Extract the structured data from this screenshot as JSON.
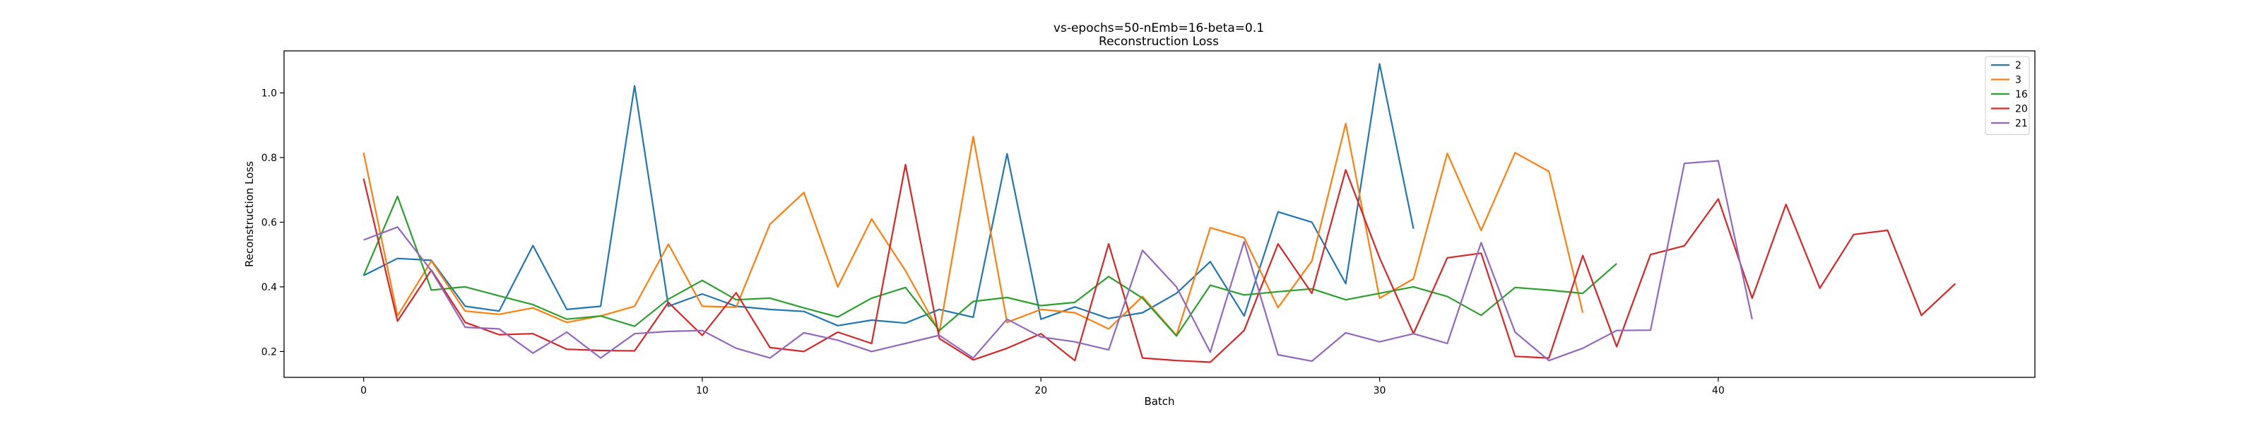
{
  "chart_data": {
    "type": "line",
    "title": "vs-epochs=50-nEmb=16-beta=0.1",
    "subtitle": "Reconstruction Loss",
    "xlabel": "Batch",
    "ylabel": "Reconstruction Loss",
    "xlim": [
      -2.35,
      49.35
    ],
    "ylim": [
      0.12,
      1.13
    ],
    "xticks": [
      0,
      10,
      20,
      30,
      40
    ],
    "yticks": [
      0.2,
      0.4,
      0.6,
      0.8,
      1.0
    ],
    "yticklabels": [
      "0.2",
      "0.4",
      "0.6",
      "0.8",
      "1.0"
    ],
    "grid": false,
    "legend_position": "top-right",
    "series": [
      {
        "name": "2",
        "color": "#1f77b4",
        "x": [
          0,
          1,
          2,
          3,
          4,
          5,
          6,
          7,
          8,
          9,
          10,
          11,
          12,
          13,
          14,
          15,
          16,
          17,
          18,
          19,
          20,
          21,
          22,
          23,
          24,
          25,
          26,
          27,
          28,
          29,
          30,
          31
        ],
        "y": [
          0.435,
          0.488,
          0.482,
          0.34,
          0.325,
          0.528,
          0.33,
          0.34,
          1.022,
          0.34,
          0.378,
          0.34,
          0.33,
          0.324,
          0.28,
          0.297,
          0.288,
          0.33,
          0.306,
          0.812,
          0.3,
          0.338,
          0.302,
          0.32,
          0.38,
          0.478,
          0.31,
          0.632,
          0.6,
          0.41,
          1.09,
          0.58
        ]
      },
      {
        "name": "3",
        "color": "#ff7f0e",
        "x": [
          0,
          1,
          2,
          3,
          4,
          5,
          6,
          7,
          8,
          9,
          10,
          11,
          12,
          13,
          14,
          15,
          16,
          17,
          18,
          19,
          20,
          21,
          22,
          23,
          24,
          25,
          26,
          27,
          28,
          29,
          30,
          31,
          32,
          33,
          34,
          35,
          36
        ],
        "y": [
          0.815,
          0.31,
          0.48,
          0.325,
          0.315,
          0.335,
          0.29,
          0.31,
          0.34,
          0.532,
          0.34,
          0.337,
          0.594,
          0.692,
          0.4,
          0.61,
          0.45,
          0.26,
          0.865,
          0.29,
          0.33,
          0.32,
          0.27,
          0.37,
          0.25,
          0.583,
          0.552,
          0.336,
          0.48,
          0.905,
          0.365,
          0.425,
          0.813,
          0.575,
          0.815,
          0.757,
          0.32
        ]
      },
      {
        "name": "16",
        "color": "#2ca02c",
        "x": [
          0,
          1,
          2,
          3,
          4,
          5,
          6,
          7,
          8,
          9,
          10,
          11,
          12,
          13,
          14,
          15,
          16,
          17,
          18,
          19,
          20,
          21,
          22,
          23,
          24,
          25,
          26,
          27,
          28,
          29,
          30,
          31,
          32,
          33,
          34,
          35,
          36,
          37
        ],
        "y": [
          0.435,
          0.68,
          0.39,
          0.4,
          0.372,
          0.345,
          0.3,
          0.31,
          0.278,
          0.362,
          0.42,
          0.36,
          0.365,
          0.335,
          0.307,
          0.365,
          0.398,
          0.265,
          0.355,
          0.367,
          0.342,
          0.352,
          0.432,
          0.365,
          0.248,
          0.405,
          0.375,
          0.385,
          0.394,
          0.36,
          0.38,
          0.4,
          0.37,
          0.312,
          0.398,
          0.39,
          0.38,
          0.472
        ]
      },
      {
        "name": "20",
        "color": "#d62728",
        "x": [
          0,
          1,
          2,
          3,
          4,
          5,
          6,
          7,
          8,
          9,
          10,
          11,
          12,
          13,
          14,
          15,
          16,
          17,
          18,
          19,
          20,
          21,
          22,
          23,
          24,
          25,
          26,
          27,
          28,
          29,
          30,
          31,
          32,
          33,
          34,
          35,
          36,
          37,
          38,
          39,
          40,
          41,
          42,
          43,
          44,
          45,
          46,
          47
        ],
        "y": [
          0.735,
          0.294,
          0.452,
          0.29,
          0.252,
          0.255,
          0.207,
          0.203,
          0.202,
          0.352,
          0.25,
          0.382,
          0.212,
          0.2,
          0.26,
          0.225,
          0.778,
          0.24,
          0.174,
          0.21,
          0.255,
          0.172,
          0.533,
          0.18,
          0.172,
          0.167,
          0.265,
          0.533,
          0.38,
          0.762,
          0.49,
          0.255,
          0.49,
          0.504,
          0.185,
          0.18,
          0.497,
          0.215,
          0.5,
          0.527,
          0.672,
          0.365,
          0.655,
          0.396,
          0.562,
          0.575,
          0.312,
          0.41
        ]
      },
      {
        "name": "21",
        "color": "#9467bd",
        "x": [
          0,
          1,
          2,
          3,
          4,
          5,
          6,
          7,
          8,
          9,
          10,
          11,
          12,
          13,
          14,
          15,
          16,
          17,
          18,
          19,
          20,
          21,
          22,
          23,
          24,
          25,
          26,
          27,
          28,
          29,
          30,
          31,
          32,
          33,
          34,
          35,
          36,
          37,
          38,
          39,
          40,
          41
        ],
        "y": [
          0.545,
          0.585,
          0.45,
          0.275,
          0.27,
          0.195,
          0.26,
          0.18,
          0.255,
          0.262,
          0.265,
          0.21,
          0.18,
          0.258,
          0.235,
          0.2,
          0.225,
          0.25,
          0.18,
          0.3,
          0.245,
          0.23,
          0.205,
          0.513,
          0.4,
          0.198,
          0.54,
          0.19,
          0.17,
          0.258,
          0.23,
          0.255,
          0.225,
          0.537,
          0.26,
          0.172,
          0.21,
          0.265,
          0.266,
          0.782,
          0.79,
          0.3
        ]
      }
    ]
  }
}
